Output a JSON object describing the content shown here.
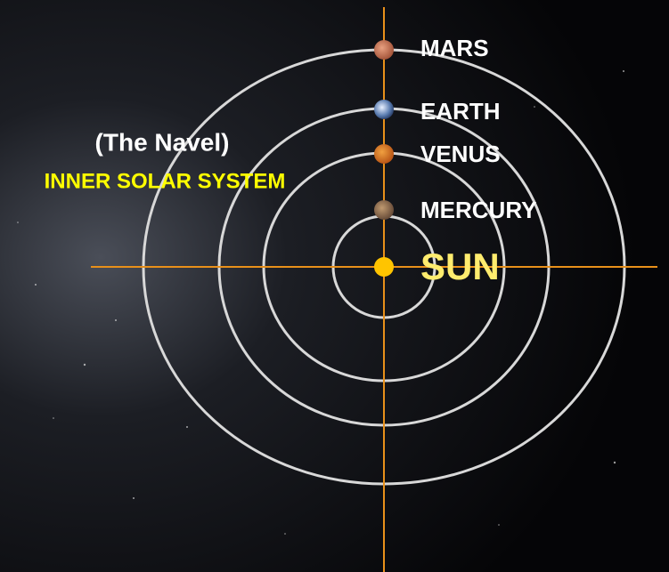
{
  "header": {
    "title": "(The Navel)",
    "subtitle": "INNER SOLAR SYSTEM"
  },
  "bodies": [
    {
      "label": "MARS"
    },
    {
      "label": "EARTH"
    },
    {
      "label": "VENUS"
    },
    {
      "label": "MERCURY"
    },
    {
      "label": "SUN"
    }
  ]
}
